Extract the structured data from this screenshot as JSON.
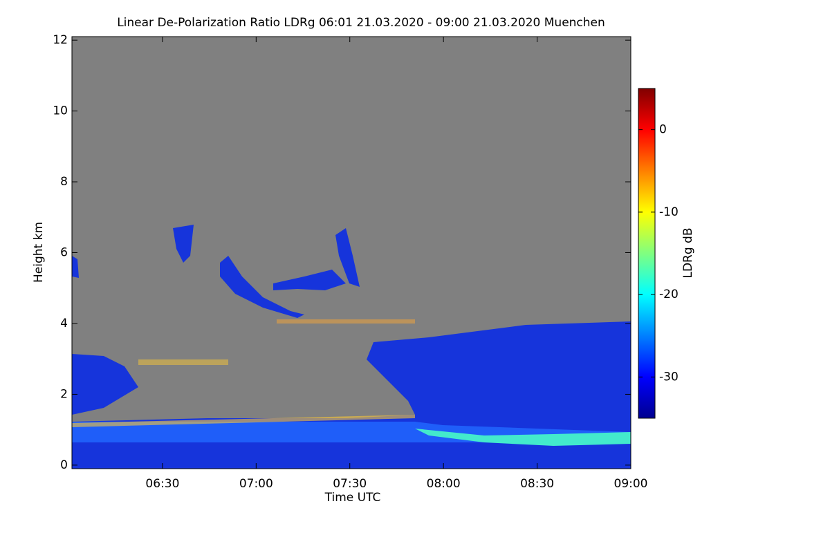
{
  "chart_data": {
    "type": "heatmap",
    "title": "Linear De-Polarization Ratio LDRg   06:01 21.03.2020 - 09:00 21.03.2020 Muenchen",
    "xlabel": "Time UTC",
    "ylabel": "Height km",
    "xlim": [
      6.0167,
      9.0
    ],
    "xticks": [
      {
        "value": 6.5,
        "label": "06:30"
      },
      {
        "value": 7.0,
        "label": "07:00"
      },
      {
        "value": 7.5,
        "label": "07:30"
      },
      {
        "value": 8.0,
        "label": "08:00"
      },
      {
        "value": 8.5,
        "label": "08:30"
      },
      {
        "value": 9.0,
        "label": "09:00"
      }
    ],
    "ylim": [
      -0.1,
      12.1
    ],
    "yticks": [
      0,
      2,
      4,
      6,
      8,
      10,
      12
    ],
    "background": "#808080",
    "colorbar": {
      "label": "LDRg dB",
      "clim": [
        -35,
        5
      ],
      "ticks": [
        0,
        -10,
        -20,
        -30
      ],
      "colormap": [
        "#00008f",
        "#0000ff",
        "#0080ff",
        "#00ffff",
        "#80ff80",
        "#ffff00",
        "#ff8000",
        "#ff0000",
        "#800000"
      ]
    }
  }
}
